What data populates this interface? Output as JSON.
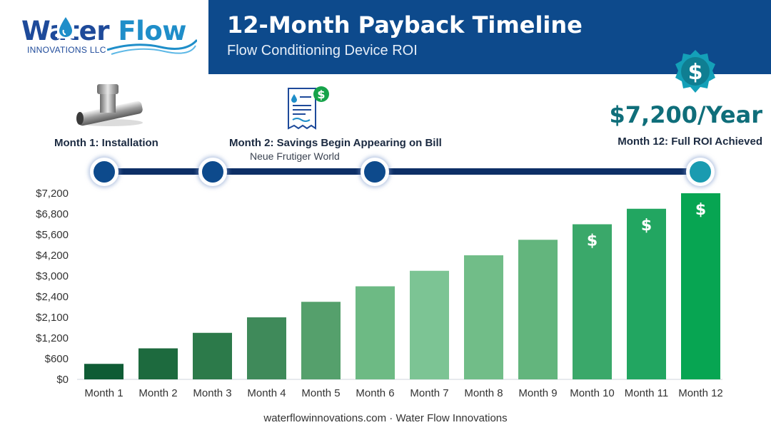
{
  "brand": {
    "logo_word1": "W",
    "logo_word1b": "ter",
    "logo_word2": "Flow",
    "logo_sub": "INNOVATIONS LLC"
  },
  "header": {
    "title": "12-Month Payback Timeline",
    "subtitle": "Flow Conditioning Device ROI",
    "bg_color": "#0d4a8c"
  },
  "milestones": [
    {
      "label": "Month 1: Installation",
      "icon": "valve-fitting-icon"
    },
    {
      "label": "Month 2: Savings Begin Appearing on Bill",
      "sublabel": "Neue Frutiger World",
      "icon": "water-bill-icon"
    },
    {
      "label": "Month 12: Full ROI Achieved",
      "value": "$7,200/Year",
      "icon": "dollar-badge-icon"
    }
  ],
  "chart_data": {
    "type": "bar",
    "categories": [
      "Month 1",
      "Month 2",
      "Month 3",
      "Month 4",
      "Month 5",
      "Month 6",
      "Month 7",
      "Month 8",
      "Month 9",
      "Month 10",
      "Month 11",
      "Month 12"
    ],
    "values": [
      600,
      1200,
      1800,
      2400,
      3000,
      3600,
      4200,
      4800,
      5400,
      6000,
      6600,
      7200
    ],
    "y_tick_labels": [
      "$0",
      "$600",
      "$1,200",
      "$2,100",
      "$2,400",
      "$3,000",
      "$4,200",
      "$5,600",
      "$6,800",
      "$7,200"
    ],
    "ylim": [
      0,
      7200
    ],
    "dollar_marker_bars": [
      "Month 10",
      "Month 11",
      "Month 12"
    ],
    "colors": [
      "#0f5c35",
      "#1d6a3e",
      "#2c7a4a",
      "#3f8a5a",
      "#55a06c",
      "#6dba84",
      "#7cc494",
      "#71bd88",
      "#63b57d",
      "#3aa86a",
      "#22a661",
      "#07a552"
    ],
    "grid": false
  },
  "footer": {
    "text": "waterflowinnovations.com · Water Flow Innovations"
  }
}
